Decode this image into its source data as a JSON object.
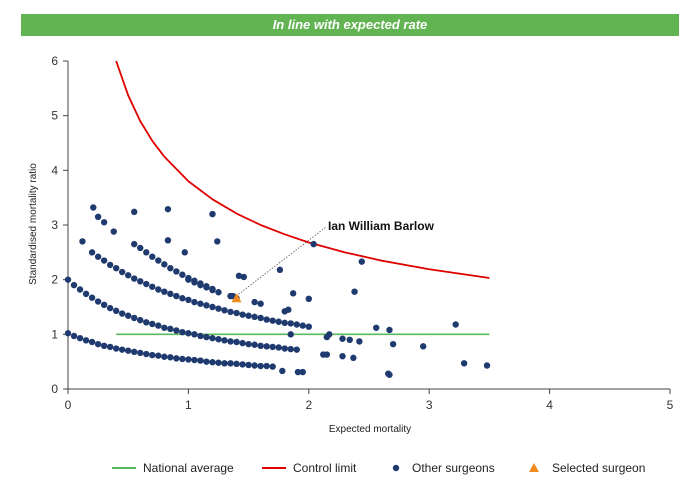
{
  "banner": {
    "text": "In line with expected rate",
    "color": "#62b352"
  },
  "chart_data": {
    "type": "scatter",
    "xlabel": "Expected mortality",
    "ylabel": "Standardised mortality ratio",
    "xlim": [
      0,
      5
    ],
    "ylim": [
      0,
      6
    ],
    "x_ticks": [
      "0",
      "1",
      "2",
      "3",
      "4",
      "5"
    ],
    "y_ticks": [
      "0",
      "1",
      "2",
      "3",
      "4",
      "5",
      "6"
    ],
    "grid": false,
    "legend_position": "bottom",
    "annotation": {
      "text": "Ian William Barlow",
      "x": 1.4,
      "y": 1.66
    },
    "colors": {
      "national": "#5cb85c",
      "control": "#e00000",
      "others": "#1f3a6e",
      "selected": "#f08c1e"
    },
    "series": [
      {
        "name": "National average",
        "kind": "line",
        "x": [
          0.4,
          3.5
        ],
        "y": [
          1,
          1
        ]
      },
      {
        "name": "Control limit",
        "kind": "line",
        "x": [
          0.4,
          0.5,
          0.6,
          0.7,
          0.8,
          1.0,
          1.2,
          1.4,
          1.6,
          1.8,
          2.0,
          2.3,
          2.6,
          3.0,
          3.5
        ],
        "y": [
          6.0,
          5.37,
          4.9,
          4.54,
          4.25,
          3.8,
          3.47,
          3.21,
          3.0,
          2.83,
          2.68,
          2.5,
          2.35,
          2.19,
          2.03
        ]
      },
      {
        "name": "Other surgeons",
        "kind": "scatter",
        "x": [
          0.0,
          0.05,
          0.1,
          0.15,
          0.2,
          0.25,
          0.3,
          0.35,
          0.4,
          0.45,
          0.5,
          0.55,
          0.6,
          0.65,
          0.7,
          0.75,
          0.8,
          0.85,
          0.9,
          0.95,
          1.0,
          1.05,
          1.1,
          1.15,
          1.2,
          1.25,
          1.3,
          1.35,
          1.4,
          1.45,
          1.5,
          1.55,
          1.6,
          1.65,
          1.7,
          0.0,
          0.05,
          0.1,
          0.15,
          0.2,
          0.25,
          0.3,
          0.35,
          0.4,
          0.45,
          0.5,
          0.55,
          0.6,
          0.65,
          0.7,
          0.75,
          0.8,
          0.85,
          0.9,
          0.95,
          1.0,
          1.05,
          1.1,
          1.15,
          1.2,
          1.25,
          1.3,
          1.35,
          1.4,
          1.45,
          1.5,
          1.55,
          1.6,
          1.65,
          1.7,
          1.75,
          1.8,
          1.85,
          1.9,
          0.2,
          0.25,
          0.3,
          0.35,
          0.4,
          0.45,
          0.5,
          0.55,
          0.6,
          0.65,
          0.7,
          0.75,
          0.8,
          0.85,
          0.9,
          0.95,
          1.0,
          1.05,
          1.1,
          1.15,
          1.2,
          1.25,
          1.3,
          1.35,
          1.4,
          1.45,
          1.5,
          1.55,
          1.6,
          1.65,
          1.7,
          1.75,
          1.8,
          1.85,
          1.9,
          1.95,
          2.0,
          0.55,
          0.6,
          0.65,
          0.7,
          0.75,
          0.8,
          0.85,
          0.9,
          0.95,
          1.0,
          1.05,
          1.1,
          1.15,
          1.2,
          1.0,
          1.05,
          1.1,
          1.15,
          1.2,
          1.25,
          1.35,
          1.4,
          1.55,
          1.6,
          0.21,
          0.25,
          0.3,
          0.55,
          0.38,
          0.83,
          0.83,
          1.2,
          1.24,
          0.12,
          0.97,
          1.42,
          1.46,
          1.37,
          1.76,
          1.87,
          2.04,
          1.83,
          2.0,
          2.44,
          2.38,
          1.8,
          1.85,
          2.15,
          2.17,
          2.12,
          2.15,
          2.28,
          2.34,
          2.42,
          2.56,
          2.67,
          2.7,
          2.95,
          3.22,
          3.29,
          3.48,
          2.28,
          2.37,
          2.66,
          2.67,
          1.95,
          1.91,
          1.78
        ],
        "y": [
          1.02,
          0.97,
          0.93,
          0.89,
          0.86,
          0.82,
          0.79,
          0.77,
          0.74,
          0.72,
          0.7,
          0.68,
          0.66,
          0.64,
          0.62,
          0.61,
          0.59,
          0.58,
          0.56,
          0.55,
          0.54,
          0.53,
          0.52,
          0.5,
          0.49,
          0.48,
          0.47,
          0.47,
          0.46,
          0.45,
          0.44,
          0.43,
          0.42,
          0.42,
          0.41,
          2.0,
          1.9,
          1.82,
          1.74,
          1.67,
          1.6,
          1.54,
          1.48,
          1.43,
          1.38,
          1.34,
          1.3,
          1.26,
          1.22,
          1.19,
          1.16,
          1.12,
          1.1,
          1.07,
          1.04,
          1.02,
          1.0,
          0.97,
          0.95,
          0.93,
          0.91,
          0.89,
          0.87,
          0.86,
          0.84,
          0.82,
          0.81,
          0.79,
          0.78,
          0.77,
          0.76,
          0.74,
          0.73,
          0.72,
          2.5,
          2.42,
          2.35,
          2.27,
          2.21,
          2.14,
          2.08,
          2.02,
          1.97,
          1.92,
          1.87,
          1.82,
          1.78,
          1.74,
          1.7,
          1.66,
          1.63,
          1.59,
          1.56,
          1.53,
          1.5,
          1.47,
          1.44,
          1.41,
          1.39,
          1.36,
          1.34,
          1.32,
          1.3,
          1.27,
          1.25,
          1.23,
          1.21,
          1.2,
          1.18,
          1.16,
          1.14,
          2.65,
          2.58,
          2.5,
          2.42,
          2.35,
          2.28,
          2.21,
          2.15,
          2.09,
          2.03,
          1.98,
          1.93,
          1.88,
          1.83,
          2.0,
          1.95,
          1.9,
          1.86,
          1.81,
          1.77,
          1.7,
          1.66,
          1.59,
          1.56,
          3.32,
          3.15,
          3.05,
          3.24,
          2.88,
          3.29,
          2.72,
          3.2,
          2.7,
          2.7,
          2.5,
          2.07,
          2.05,
          1.7,
          2.18,
          1.75,
          2.65,
          1.45,
          1.65,
          2.33,
          1.78,
          1.42,
          1.0,
          0.95,
          1.0,
          0.63,
          0.63,
          0.92,
          0.9,
          0.87,
          1.12,
          1.08,
          0.82,
          0.78,
          1.18,
          0.47,
          0.43,
          0.6,
          0.57,
          0.28,
          0.26,
          0.31,
          0.31,
          0.33
        ]
      },
      {
        "name": "Selected surgeon",
        "kind": "marker",
        "x": [
          1.4
        ],
        "y": [
          1.66
        ]
      }
    ]
  }
}
